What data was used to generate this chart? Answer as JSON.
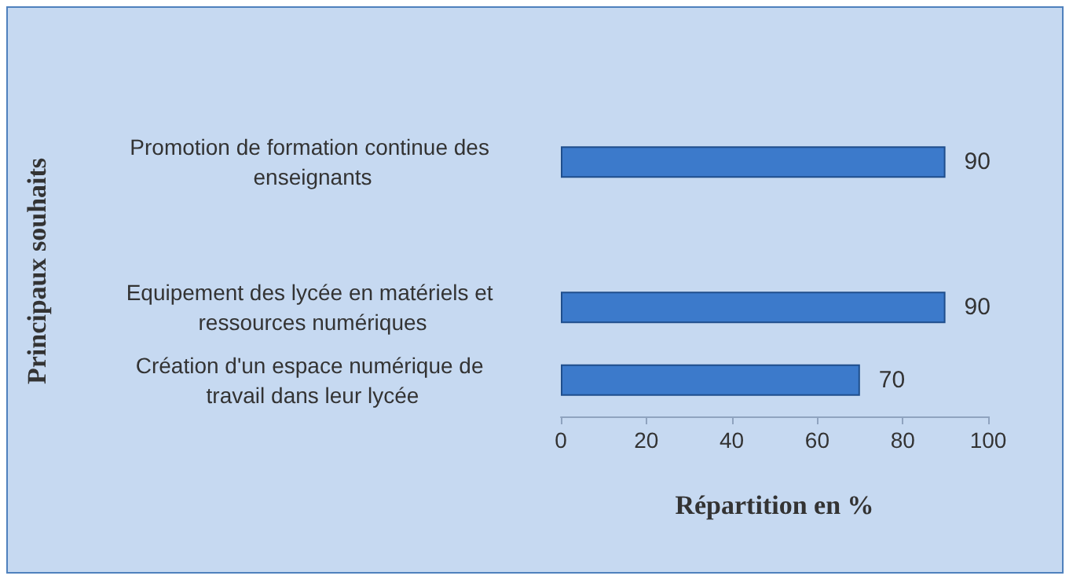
{
  "chart_data": {
    "type": "bar",
    "orientation": "horizontal",
    "xlabel": "Répartition en %",
    "ylabel": "Principaux souhaits",
    "categories": [
      "Promotion de formation continue des enseignants",
      null,
      "Equipement des lycée en matériels et ressources numériques",
      "Création d'un espace numérique de travail dans leur lycée"
    ],
    "values": [
      90,
      null,
      90,
      70
    ],
    "color": "#3c7acb",
    "xlim": [
      0,
      100
    ],
    "xticks": [
      0,
      20,
      40,
      60,
      80,
      100
    ],
    "data_labels": true
  }
}
